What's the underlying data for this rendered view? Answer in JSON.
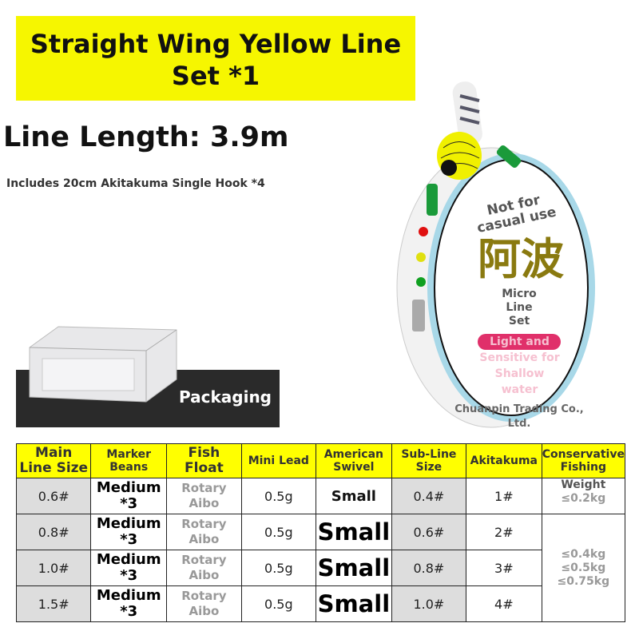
{
  "banner": {
    "title": "Straight Wing Yellow Line Set *1"
  },
  "line_length": "Line Length: 3.9m",
  "includes": "Includes 20cm Akitakuma Single Hook *4",
  "packaging_label": "Packaging",
  "product": {
    "top": "Not for casual use",
    "chinese": "阿波",
    "sub": "Micro Line Set",
    "tag": "Light and Sensitive for Shallow water",
    "company": "Chuanpin Trading Co., Ltd."
  },
  "colors": {
    "banner": "#f6f600",
    "header": "#ffff00",
    "tag": "#e0306a"
  },
  "table": {
    "headers": [
      "Main Line Size",
      "Marker Beans",
      "Fish Float",
      "Mini Lead",
      "American Swivel",
      "Sub-Line Size",
      "Akitakuma",
      "Conservative Fishing"
    ],
    "rows": [
      [
        "0.6#",
        "Medium *3",
        "Rotary Aibo",
        "0.5g",
        "Small",
        "0.4#",
        "1#"
      ],
      [
        "0.8#",
        "Medium *3",
        "Rotary Aibo",
        "0.5g",
        "Small",
        "0.6#",
        "2#"
      ],
      [
        "1.0#",
        "Medium *3",
        "Rotary Aibo",
        "0.5g",
        "Small",
        "0.8#",
        "3#"
      ],
      [
        "1.5#",
        "Medium *3",
        "Rotary Aibo",
        "0.5g",
        "Small",
        "1.0#",
        "4#"
      ]
    ],
    "weight_label": "Weight",
    "weights": [
      "≤0.2kg",
      "≤0.4kg",
      "≤0.5kg",
      "≤0.75kg"
    ]
  }
}
